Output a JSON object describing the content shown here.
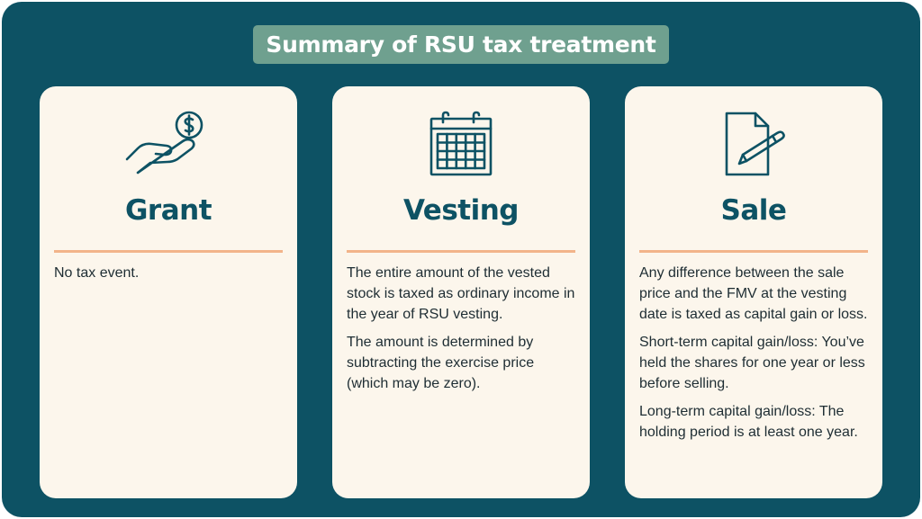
{
  "title": "Summary of RSU tax treatment",
  "colors": {
    "background": "#0d5264",
    "title_bg": "#6fa08f",
    "card_bg": "#fcf6ec",
    "divider": "#f2b48a",
    "heading": "#0d5264"
  },
  "cards": [
    {
      "icon": "hand-coin-icon",
      "heading": "Grant",
      "paragraphs": [
        "No tax event."
      ]
    },
    {
      "icon": "calendar-icon",
      "heading": "Vesting",
      "paragraphs": [
        "The entire amount of the vested stock is taxed as ordinary income in the year of RSU vesting.",
        "The amount is determined by subtracting the exercise price (which may be zero)."
      ]
    },
    {
      "icon": "document-pen-icon",
      "heading": "Sale",
      "paragraphs": [
        "Any difference between the sale price and the FMV at the vesting date is taxed as capital gain or loss.",
        "Short-term capital gain/loss: You’ve held the shares for one year or less before selling.",
        "Long-term capital gain/loss: The holding period is at least one year."
      ]
    }
  ]
}
